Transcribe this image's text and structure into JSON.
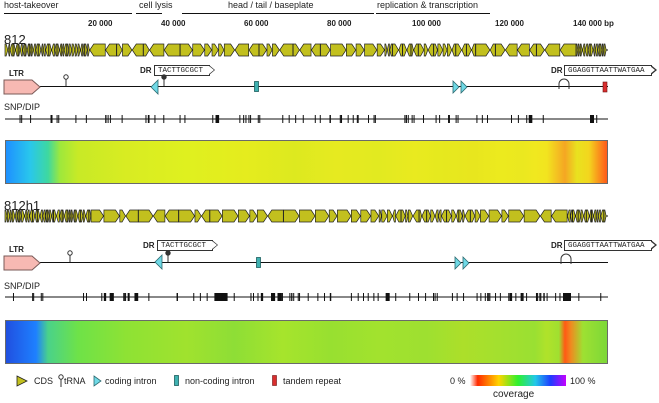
{
  "regions": [
    {
      "label": "host-takeover",
      "start": 0,
      "end": 36000
    },
    {
      "label": "cell lysis",
      "start": 37000,
      "end": 43000
    },
    {
      "label": "head / tail / baseplate",
      "start": 44000,
      "end": 90000
    },
    {
      "label": "replication & transcription",
      "start": 93000,
      "end": 120000
    }
  ],
  "axis": {
    "ticks": [
      "20 000",
      "40 000",
      "60 000",
      "80 000",
      "100 000",
      "120 000",
      "140 000 bp"
    ],
    "tick_values": [
      20000,
      40000,
      60000,
      80000,
      100000,
      120000,
      140000
    ]
  },
  "genomes": [
    {
      "name": "812",
      "ltr_label": "LTR",
      "dr_label": "DR",
      "dr_left_seq": "TACTTGCGCT",
      "dr_right_seq": "GGAGGTTAATTWATGAA",
      "snp_label": "SNP/DIP",
      "heat_colors": [
        "#1e90ff",
        "#29c7ec",
        "#3ed8a0",
        "#9ee83c",
        "#c8ea26",
        "#d8ec22",
        "#dff01f",
        "#e5ec1e",
        "#dde91f",
        "#e6ea20",
        "#e2ea20",
        "#e9ea1f",
        "#e6e91e",
        "#e8e61e",
        "#ecea1e",
        "#ebe81f",
        "#f0e81f",
        "#f2e41f",
        "#f5a623",
        "#e9e21f",
        "#f3d61e",
        "#ff5a1a"
      ],
      "heat_stops": [
        0,
        4,
        7,
        9,
        12,
        20,
        30,
        40,
        48,
        55,
        62,
        68,
        72,
        78,
        82,
        86,
        88,
        90,
        93,
        95,
        97,
        100
      ]
    },
    {
      "name": "812h1",
      "ltr_label": "LTR",
      "dr_label": "DR",
      "dr_left_seq": "TACTTGCGCT",
      "dr_right_seq": "GGAGGTTAATTWATGAA",
      "snp_label": "SNP/DIP",
      "heat_colors": [
        "#2050e0",
        "#1e80ff",
        "#4ad28a",
        "#6ee248",
        "#8ee234",
        "#a0e22e",
        "#8ede36",
        "#a6e42c",
        "#98e030",
        "#a2e22e",
        "#9ee030",
        "#acdf2a",
        "#a4e02e",
        "#9ae032",
        "#b0e22a",
        "#a0e030",
        "#ff5a14",
        "#f08a20",
        "#9ee032",
        "#7dd838"
      ],
      "heat_stops": [
        0,
        5,
        7,
        12,
        20,
        30,
        38,
        46,
        54,
        62,
        70,
        76,
        82,
        88,
        90,
        92,
        93,
        94,
        96,
        100
      ]
    }
  ],
  "legend": {
    "cds": "CDS",
    "trna": "tRNA",
    "coding_intron": "coding intron",
    "noncoding_intron": "non-coding intron",
    "tandem_repeat": "tandem repeat",
    "cov_min": "0 %",
    "cov_max": "100 %",
    "coverage": "coverage"
  },
  "colors": {
    "cds": "#c2c01e",
    "cds_stroke": "#222222",
    "ltr": "#f7b9b3",
    "coding_intron": "#6fd9e6",
    "noncoding_intron": "#3fb1b1",
    "tandem_repeat": "#d92e2e"
  }
}
